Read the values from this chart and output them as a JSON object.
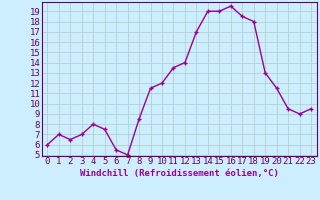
{
  "x": [
    0,
    1,
    2,
    3,
    4,
    5,
    6,
    7,
    8,
    9,
    10,
    11,
    12,
    13,
    14,
    15,
    16,
    17,
    18,
    19,
    20,
    21,
    22,
    23
  ],
  "y": [
    6,
    7,
    6.5,
    7,
    8,
    7.5,
    5.5,
    5,
    8.5,
    11.5,
    12,
    13.5,
    14,
    17,
    19,
    19,
    19.5,
    18.5,
    18,
    13,
    11.5,
    9.5,
    9,
    9.5
  ],
  "line_color": "#990099",
  "marker_color": "#990099",
  "bg_color": "#cceeff",
  "grid_color": "#aacccc",
  "xlabel": "Windchill (Refroidissement éolien,°C)",
  "xlabel_color": "#990099",
  "tick_color": "#660066",
  "ylim": [
    5,
    19.5
  ],
  "yticks": [
    5,
    6,
    7,
    8,
    9,
    10,
    11,
    12,
    13,
    14,
    15,
    16,
    17,
    18,
    19
  ],
  "xticks": [
    0,
    1,
    2,
    3,
    4,
    5,
    6,
    7,
    8,
    9,
    10,
    11,
    12,
    13,
    14,
    15,
    16,
    17,
    18,
    19,
    20,
    21,
    22,
    23
  ],
  "font_size": 6.5,
  "marker_size": 3,
  "line_width": 1.0
}
